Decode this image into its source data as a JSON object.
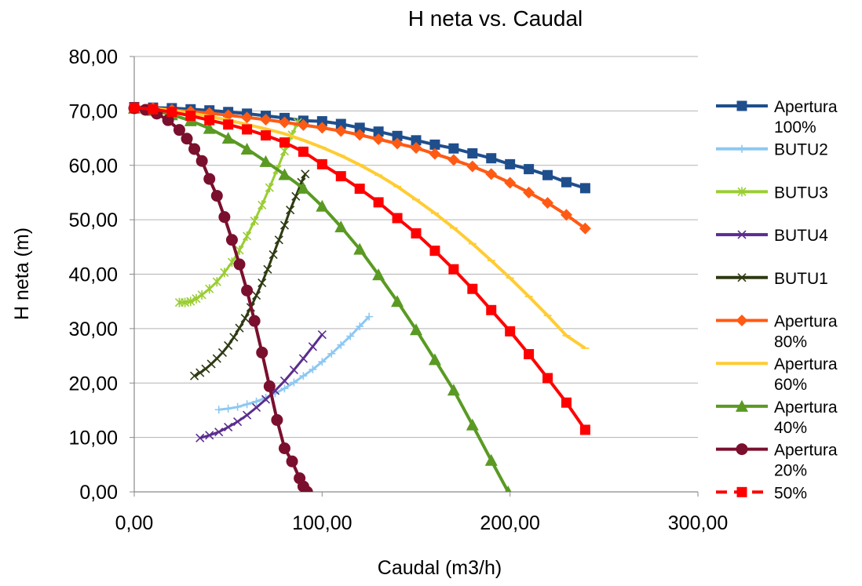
{
  "chart_data": {
    "type": "line",
    "title": "H neta vs. Caudal",
    "xlabel": "Caudal (m3/h)",
    "ylabel": "H neta (m)",
    "xlim": [
      0,
      300
    ],
    "ylim": [
      0,
      80
    ],
    "x_ticks": [
      "0,00",
      "100,00",
      "200,00",
      "300,00"
    ],
    "y_ticks": [
      "0,00",
      "10,00",
      "20,00",
      "30,00",
      "40,00",
      "50,00",
      "60,00",
      "70,00",
      "80,00"
    ],
    "grid": "horizontal",
    "legend_position": "right",
    "series": [
      {
        "name": "Apertura 100%",
        "legend_lines": [
          "Apertura",
          "100%"
        ],
        "color": "#1F4E8C",
        "marker": "square",
        "line_dash": "solid",
        "x": [
          0,
          10,
          20,
          30,
          40,
          50,
          60,
          70,
          80,
          90,
          100,
          110,
          120,
          130,
          140,
          150,
          160,
          170,
          180,
          190,
          200,
          210,
          220,
          230,
          240
        ],
        "y": [
          70.7,
          70.6,
          70.5,
          70.3,
          70.1,
          69.8,
          69.5,
          69.1,
          68.7,
          68.2,
          68.1,
          67.6,
          66.9,
          66.2,
          65.4,
          64.6,
          63.8,
          63.1,
          62.2,
          61.3,
          60.2,
          59.3,
          58.2,
          56.9,
          55.8
        ]
      },
      {
        "name": "BUTU2",
        "legend_lines": [
          "BUTU2"
        ],
        "color": "#8DC8F2",
        "marker": "plus",
        "line_dash": "solid",
        "x": [
          45,
          50,
          55,
          60,
          65,
          70,
          75,
          80,
          85,
          90,
          95,
          100,
          105,
          110,
          115,
          120,
          125
        ],
        "y": [
          15.1,
          15.3,
          15.6,
          16.1,
          16.6,
          17.3,
          18.1,
          19.0,
          20.1,
          21.3,
          22.5,
          23.9,
          25.4,
          27.0,
          28.6,
          30.4,
          32.2
        ]
      },
      {
        "name": "BUTU3",
        "legend_lines": [
          "BUTU3"
        ],
        "color": "#9ACD32",
        "marker": "asterisk",
        "line_dash": "solid",
        "x": [
          24,
          27,
          30,
          33,
          36,
          40,
          44,
          48,
          52,
          56,
          60,
          64,
          68,
          72,
          76,
          80,
          84,
          87
        ],
        "y": [
          34.8,
          34.8,
          35.0,
          35.5,
          36.2,
          37.3,
          38.6,
          40.3,
          42.2,
          44.4,
          47.0,
          49.8,
          52.7,
          55.9,
          59.2,
          62.6,
          65.6,
          67.9
        ]
      },
      {
        "name": "BUTU4",
        "legend_lines": [
          "BUTU4"
        ],
        "color": "#5B2D8E",
        "marker": "x",
        "line_dash": "solid",
        "x": [
          35,
          40,
          45,
          50,
          55,
          60,
          65,
          70,
          75,
          80,
          85,
          90,
          95,
          100
        ],
        "y": [
          9.9,
          10.4,
          11.0,
          11.9,
          12.9,
          14.1,
          15.5,
          17.0,
          18.6,
          20.4,
          22.4,
          24.5,
          26.7,
          28.9
        ]
      },
      {
        "name": "BUTU1",
        "legend_lines": [
          "BUTU1"
        ],
        "color": "#2E3A12",
        "marker": "x",
        "line_dash": "solid",
        "x": [
          32,
          35,
          38,
          41,
          44,
          47,
          50,
          53,
          56,
          59,
          62,
          65,
          68,
          71,
          74,
          77,
          80,
          83,
          86,
          89,
          91
        ],
        "y": [
          21.3,
          21.9,
          22.6,
          23.5,
          24.5,
          25.6,
          26.9,
          28.4,
          30.1,
          31.9,
          33.9,
          36.1,
          38.4,
          40.9,
          43.6,
          46.3,
          49.0,
          51.8,
          54.3,
          56.9,
          58.4
        ]
      },
      {
        "name": "Apertura 80%",
        "legend_lines": [
          "Apertura",
          "80%"
        ],
        "color": "#FF5A14",
        "marker": "diamond",
        "line_dash": "solid",
        "x": [
          0,
          10,
          20,
          30,
          40,
          50,
          60,
          70,
          80,
          90,
          100,
          110,
          120,
          130,
          140,
          150,
          160,
          170,
          180,
          190,
          200,
          210,
          220,
          230,
          240
        ],
        "y": [
          70.6,
          70.5,
          70.2,
          69.9,
          69.6,
          69.2,
          68.8,
          68.4,
          67.9,
          67.4,
          66.9,
          66.3,
          65.6,
          64.8,
          64.0,
          63.2,
          62.1,
          61.0,
          59.8,
          58.4,
          56.8,
          55.0,
          53.1,
          50.9,
          48.4
        ]
      },
      {
        "name": "Apertura 60%",
        "legend_lines": [
          "Apertura",
          "60%"
        ],
        "color": "#FFCC33",
        "marker": "dash",
        "line_dash": "solid",
        "x": [
          0,
          10,
          20,
          30,
          40,
          50,
          60,
          70,
          80,
          90,
          100,
          110,
          120,
          130,
          140,
          150,
          160,
          170,
          180,
          190,
          200,
          210,
          220,
          230,
          240
        ],
        "y": [
          70.6,
          70.4,
          70.1,
          69.6,
          69.0,
          68.3,
          67.5,
          66.7,
          65.8,
          64.6,
          63.3,
          61.8,
          60.1,
          58.2,
          56.1,
          53.7,
          51.2,
          48.5,
          45.6,
          42.5,
          39.3,
          35.9,
          32.4,
          28.7,
          26.4
        ]
      },
      {
        "name": "Apertura 40%",
        "legend_lines": [
          "Apertura",
          "40%"
        ],
        "color": "#5A9A23",
        "marker": "triangle",
        "line_dash": "solid",
        "x": [
          0,
          10,
          20,
          30,
          40,
          50,
          60,
          70,
          80,
          90,
          100,
          110,
          120,
          130,
          140,
          150,
          160,
          170,
          180,
          190,
          199
        ],
        "y": [
          70.5,
          70.1,
          69.3,
          68.2,
          66.8,
          65.0,
          63.0,
          60.7,
          58.3,
          55.8,
          52.5,
          48.7,
          44.6,
          39.9,
          35.0,
          29.8,
          24.3,
          18.7,
          12.3,
          5.8,
          0.0
        ]
      },
      {
        "name": "Apertura 20%",
        "legend_lines": [
          "Apertura",
          "20%"
        ],
        "color": "#7A0F2E",
        "marker": "circle",
        "line_dash": "solid",
        "x": [
          0,
          6,
          12,
          18,
          24,
          28,
          32,
          36,
          40,
          44,
          48,
          52,
          56,
          60,
          64,
          68,
          72,
          76,
          80,
          84,
          88,
          90,
          92
        ],
        "y": [
          70.5,
          70.2,
          69.5,
          68.3,
          66.5,
          64.9,
          63.0,
          60.8,
          57.5,
          54.4,
          50.5,
          46.3,
          41.8,
          37.0,
          31.4,
          25.6,
          19.4,
          13.2,
          8.0,
          5.6,
          2.5,
          1.0,
          0.0
        ]
      },
      {
        "name": "50%",
        "legend_lines": [
          "50%"
        ],
        "color": "#FF0000",
        "marker": "square",
        "line_dash": "dashed",
        "x": [
          0,
          10,
          20,
          30,
          40,
          50,
          60,
          70,
          80,
          90,
          100,
          110,
          120,
          130,
          140,
          150,
          160,
          170,
          180,
          190,
          200,
          210,
          220,
          230,
          240
        ],
        "y": [
          70.6,
          70.3,
          69.8,
          69.1,
          68.3,
          67.5,
          66.6,
          65.5,
          64.2,
          62.5,
          60.2,
          58.0,
          55.7,
          53.2,
          50.3,
          47.5,
          44.3,
          40.9,
          37.3,
          33.4,
          29.5,
          25.3,
          20.9,
          16.4,
          11.4
        ]
      }
    ]
  }
}
